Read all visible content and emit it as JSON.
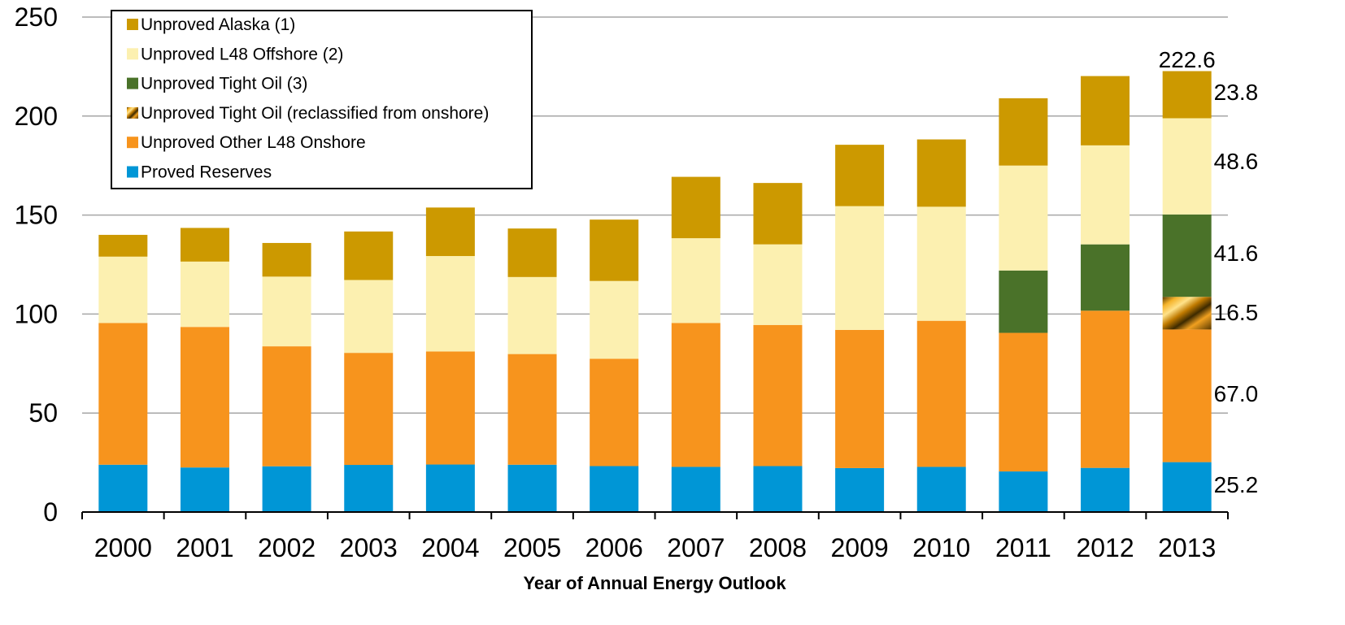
{
  "chart_data": {
    "type": "bar",
    "stacked": true,
    "title": "",
    "xlabel": "Year of Annual Energy Outlook",
    "ylabel": "",
    "ylim": [
      0,
      250
    ],
    "yticks": [
      0,
      50,
      100,
      150,
      200,
      250
    ],
    "grid": true,
    "legend_position": "top-left",
    "categories": [
      "2000",
      "2001",
      "2002",
      "2003",
      "2004",
      "2005",
      "2006",
      "2007",
      "2008",
      "2009",
      "2010",
      "2011",
      "2012",
      "2013"
    ],
    "series": [
      {
        "name": "Proved Reserves",
        "color": "#0096d6",
        "values": [
          23.9,
          22.5,
          23.1,
          23.8,
          24.0,
          23.9,
          23.2,
          22.8,
          23.2,
          22.2,
          22.8,
          20.5,
          22.3,
          25.2
        ]
      },
      {
        "name": "Unproved Other L48 Onshore",
        "color": "#f7941d",
        "values": [
          71.6,
          71.0,
          60.6,
          56.6,
          57.1,
          55.9,
          54.2,
          72.7,
          71.3,
          69.8,
          73.8,
          70.0,
          79.4,
          67.0
        ]
      },
      {
        "name": "Unproved Tight Oil (reclassified from onshore)",
        "color": "#e08e0b",
        "pattern": "striped",
        "values": [
          0,
          0,
          0,
          0,
          0,
          0,
          0,
          0,
          0,
          0,
          0,
          0,
          0,
          16.5
        ]
      },
      {
        "name": "Unproved Tight Oil (3)",
        "color": "#4a7229",
        "values": [
          0,
          0,
          0,
          0,
          0,
          0,
          0,
          0,
          0,
          0,
          0,
          31.5,
          33.5,
          41.6
        ]
      },
      {
        "name": "Unproved L48 Offshore (2)",
        "color": "#fcf0b0",
        "values": [
          33.5,
          33.0,
          35.2,
          36.8,
          48.2,
          38.9,
          39.3,
          42.8,
          40.7,
          62.5,
          57.6,
          53.0,
          50.0,
          48.6
        ]
      },
      {
        "name": "Unproved Alaska (1)",
        "color": "#cc9900",
        "values": [
          11.0,
          17.0,
          17.0,
          24.5,
          24.5,
          24.5,
          31.0,
          31.0,
          31.0,
          31.0,
          34.0,
          34.0,
          35.0,
          23.8
        ]
      }
    ],
    "data_labels": {
      "total_2013": "222.6",
      "segments_2013": [
        "25.2",
        "67.0",
        "16.5",
        "41.6",
        "48.6",
        "23.8"
      ]
    }
  }
}
